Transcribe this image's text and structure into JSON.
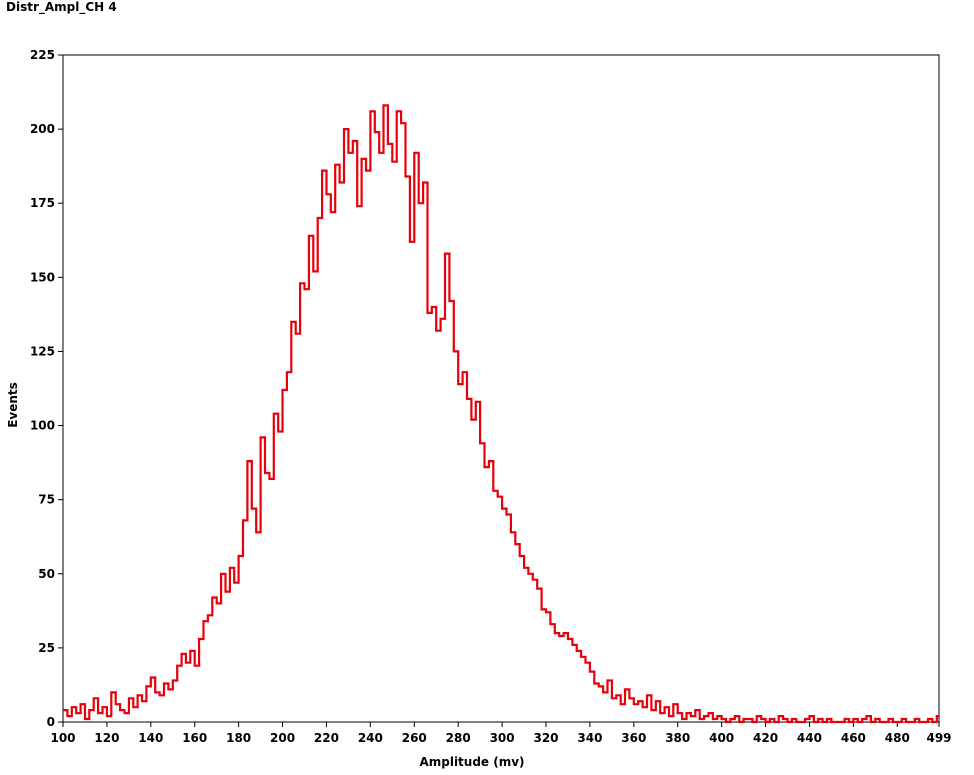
{
  "window": {
    "title": "Distr_Ampl_CH 4"
  },
  "chart_data": {
    "type": "line",
    "step": true,
    "xlabel": "Amplitude (mv)",
    "ylabel": "Events",
    "xlim": [
      100,
      499
    ],
    "ylim": [
      0,
      225
    ],
    "xticks": [
      100,
      120,
      140,
      160,
      180,
      200,
      220,
      240,
      260,
      280,
      300,
      320,
      340,
      360,
      380,
      400,
      420,
      440,
      460,
      480,
      499
    ],
    "yticks": [
      0,
      25,
      50,
      75,
      100,
      125,
      150,
      175,
      200,
      225
    ],
    "grid": false,
    "series": [
      {
        "color": "#e8000b",
        "x": [
          100,
          102,
          104,
          106,
          108,
          110,
          112,
          114,
          116,
          118,
          120,
          122,
          124,
          126,
          128,
          130,
          132,
          134,
          136,
          138,
          140,
          142,
          144,
          146,
          148,
          150,
          152,
          154,
          156,
          158,
          160,
          162,
          164,
          166,
          168,
          170,
          172,
          174,
          176,
          178,
          180,
          182,
          184,
          186,
          188,
          190,
          192,
          194,
          196,
          198,
          200,
          202,
          204,
          206,
          208,
          210,
          212,
          214,
          216,
          218,
          220,
          222,
          224,
          226,
          228,
          230,
          232,
          234,
          236,
          238,
          240,
          242,
          244,
          246,
          248,
          250,
          252,
          254,
          256,
          258,
          260,
          262,
          264,
          266,
          268,
          270,
          272,
          274,
          276,
          278,
          280,
          282,
          284,
          286,
          288,
          290,
          292,
          294,
          296,
          298,
          300,
          302,
          304,
          306,
          308,
          310,
          312,
          314,
          316,
          318,
          320,
          322,
          324,
          326,
          328,
          330,
          332,
          334,
          336,
          338,
          340,
          342,
          344,
          346,
          348,
          350,
          352,
          354,
          356,
          358,
          360,
          362,
          364,
          366,
          368,
          370,
          372,
          374,
          376,
          378,
          380,
          382,
          384,
          386,
          388,
          390,
          392,
          394,
          396,
          398,
          400,
          402,
          404,
          406,
          408,
          410,
          412,
          414,
          416,
          418,
          420,
          422,
          424,
          426,
          428,
          430,
          432,
          434,
          436,
          438,
          440,
          442,
          444,
          446,
          448,
          450,
          452,
          454,
          456,
          458,
          460,
          462,
          464,
          466,
          468,
          470,
          472,
          474,
          476,
          478,
          480,
          482,
          484,
          486,
          488,
          490,
          492,
          494,
          496,
          498
        ],
        "y": [
          4,
          2,
          5,
          3,
          6,
          1,
          4,
          8,
          3,
          5,
          2,
          10,
          6,
          4,
          3,
          8,
          5,
          9,
          7,
          12,
          15,
          10,
          9,
          13,
          11,
          14,
          19,
          23,
          20,
          24,
          19,
          28,
          34,
          36,
          42,
          40,
          50,
          44,
          52,
          47,
          56,
          68,
          88,
          72,
          64,
          96,
          84,
          82,
          104,
          98,
          112,
          118,
          135,
          131,
          148,
          146,
          164,
          152,
          170,
          186,
          178,
          172,
          188,
          182,
          200,
          192,
          196,
          174,
          190,
          186,
          206,
          199,
          192,
          208,
          195,
          189,
          206,
          202,
          184,
          162,
          192,
          175,
          182,
          138,
          140,
          132,
          136,
          158,
          142,
          125,
          114,
          118,
          109,
          102,
          108,
          94,
          86,
          88,
          78,
          76,
          72,
          70,
          64,
          60,
          56,
          52,
          50,
          48,
          45,
          38,
          37,
          33,
          30,
          29,
          30,
          28,
          26,
          24,
          22,
          20,
          17,
          13,
          12,
          10,
          14,
          8,
          9,
          6,
          11,
          8,
          6,
          7,
          5,
          9,
          4,
          7,
          3,
          5,
          2,
          6,
          3,
          1,
          3,
          2,
          4,
          1,
          2,
          3,
          1,
          2,
          1,
          0,
          1,
          2,
          0,
          1,
          1,
          0,
          2,
          1,
          0,
          1,
          0,
          2,
          1,
          0,
          1,
          0,
          0,
          1,
          2,
          0,
          1,
          0,
          1,
          0,
          0,
          0,
          1,
          0,
          1,
          0,
          1,
          2,
          0,
          1,
          0,
          0,
          1,
          0,
          0,
          1,
          0,
          0,
          1,
          0,
          0,
          1,
          0,
          2
        ]
      }
    ]
  }
}
